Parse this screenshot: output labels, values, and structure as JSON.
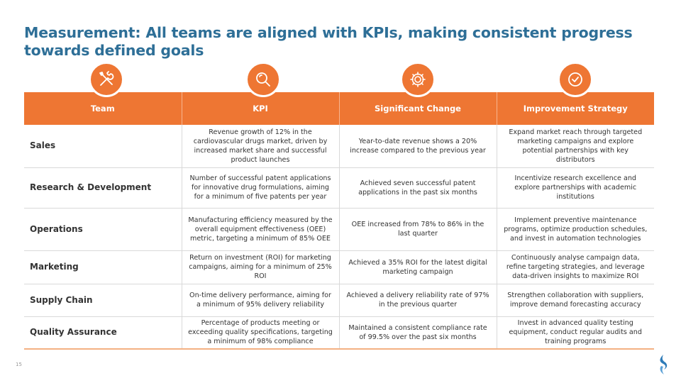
{
  "title": "Measurement: All teams are aligned with KPIs, making consistent progress towards defined goals",
  "header": {
    "team": "Team",
    "kpi": "KPI",
    "change": "Significant Change",
    "strategy": "Improvement Strategy"
  },
  "icons": [
    "tools-icon",
    "magnifier-icon",
    "gear-icon",
    "checkmark-badge-icon"
  ],
  "rows": [
    {
      "team": "Sales",
      "kpi": "Revenue growth of 12% in the cardiovascular drugs market, driven by increased market share and successful product launches",
      "change": "Year-to-date revenue shows a 20% increase compared to the previous year",
      "strategy": "Expand market reach through targeted marketing campaigns and explore potential partnerships with key distributors"
    },
    {
      "team": "Research & Development",
      "kpi": "Number of successful patent applications for innovative drug formulations, aiming for a minimum of five patents per year",
      "change": "Achieved seven successful patent applications in the past six months",
      "strategy": "Incentivize research excellence and explore partnerships with academic institutions"
    },
    {
      "team": "Operations",
      "kpi": "Manufacturing efficiency measured by the overall equipment effectiveness (OEE) metric, targeting a minimum of 85% OEE",
      "change": "OEE increased from 78% to 86% in the last quarter",
      "strategy": "Implement preventive maintenance programs, optimize production schedules, and invest in automation technologies"
    },
    {
      "team": "Marketing",
      "kpi": "Return on investment (ROI) for marketing campaigns, aiming for a minimum of 25% ROI",
      "change": "Achieved a 35% ROI for the latest digital marketing campaign",
      "strategy": "Continuously analyse campaign data, refine targeting strategies, and leverage data-driven insights to maximize ROI"
    },
    {
      "team": "Supply Chain",
      "kpi": "On-time delivery performance, aiming for a minimum of 95% delivery reliability",
      "change": "Achieved a delivery reliability rate of 97% in the previous quarter",
      "strategy": "Strengthen collaboration with suppliers, improve demand forecasting accuracy"
    },
    {
      "team": "Quality Assurance",
      "kpi": "Percentage of products meeting or exceeding quality specifications, targeting a minimum of 98% compliance",
      "change": "Maintained a consistent compliance rate of 99.5% over the past six months",
      "strategy": "Invest in advanced quality testing equipment, conduct regular audits and training programs"
    }
  ],
  "page_number": "15",
  "colors": {
    "accent": "#ee7633",
    "title": "#2e6f97",
    "logo": "#2e7bb8"
  }
}
